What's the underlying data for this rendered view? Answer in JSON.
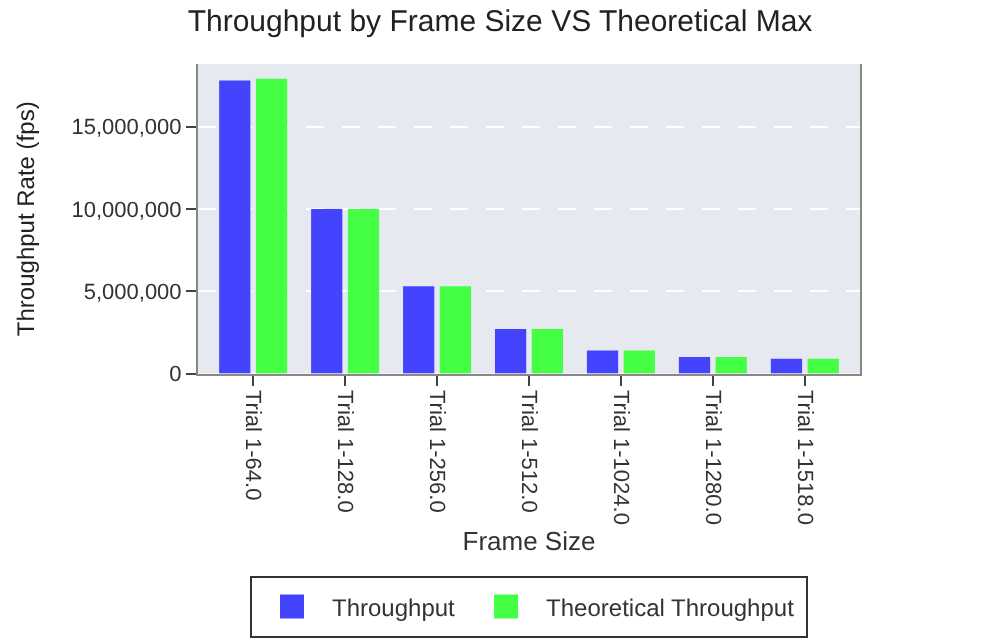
{
  "chart_data": {
    "type": "bar",
    "title": "Throughput by Frame Size VS Theoretical Max",
    "xlabel": "Frame Size",
    "ylabel": "Throughput Rate (fps)",
    "categories": [
      "Trial 1-64.0",
      "Trial 1-128.0",
      "Trial 1-256.0",
      "Trial 1-512.0",
      "Trial 1-1024.0",
      "Trial 1-1280.0",
      "Trial 1-1518.0"
    ],
    "series": [
      {
        "name": "Throughput",
        "color": "#4444ff",
        "values": [
          17800000,
          10000000,
          5300000,
          2700000,
          1400000,
          1000000,
          900000
        ]
      },
      {
        "name": "Theoretical Throughput",
        "color": "#44ff44",
        "values": [
          17900000,
          10000000,
          5300000,
          2700000,
          1400000,
          1000000,
          900000
        ]
      }
    ],
    "ylim": [
      0,
      18800000
    ],
    "yticks": [
      {
        "value": 0,
        "label": "0"
      },
      {
        "value": 5000000,
        "label": "5,000,000"
      },
      {
        "value": 10000000,
        "label": "10,000,000"
      },
      {
        "value": 15000000,
        "label": "15,000,000"
      }
    ],
    "grid": "y",
    "legend": "bottom"
  }
}
